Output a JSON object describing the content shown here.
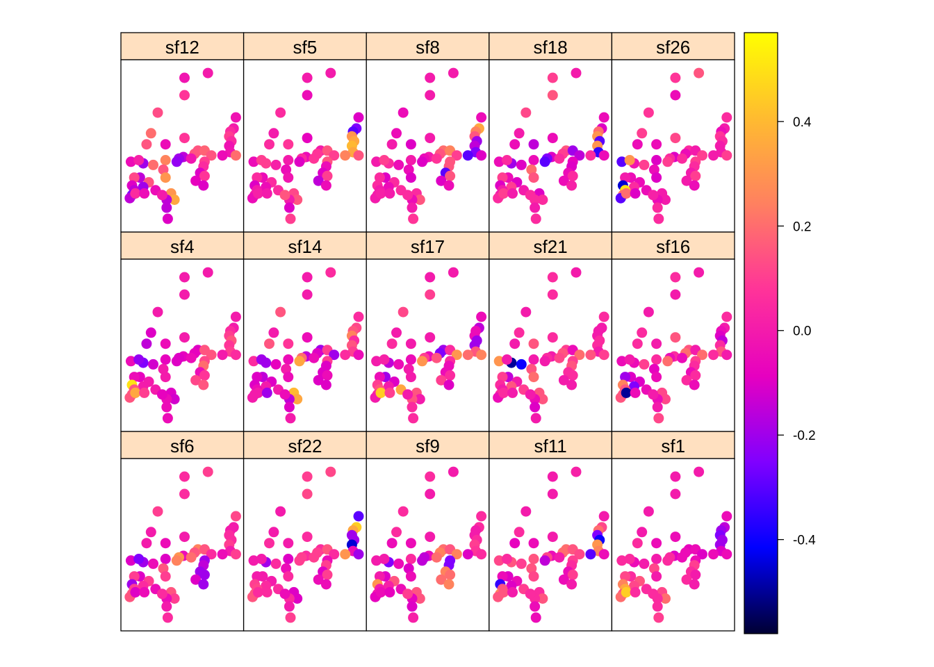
{
  "chart_data": {
    "type": "scatter",
    "layout": "3 rows x 5 columns of panels",
    "panels": [
      "sf12",
      "sf5",
      "sf8",
      "sf18",
      "sf26",
      "sf4",
      "sf14",
      "sf17",
      "sf21",
      "sf16",
      "sf6",
      "sf22",
      "sf9",
      "sf11",
      "sf1"
    ],
    "xlim": [
      0,
      1
    ],
    "ylim": [
      0,
      1
    ],
    "colorbar": {
      "range": [
        -0.58,
        0.57
      ],
      "ticks": [
        -0.4,
        -0.2,
        0.0,
        0.2,
        0.4
      ],
      "tick_labels": [
        "-0.4",
        "-0.2",
        "0.0",
        "0.2",
        "0.4"
      ],
      "colors": [
        "#000033",
        "#0000ff",
        "#8000ff",
        "#e600c0",
        "#ff3399",
        "#ff8060",
        "#ffbb30",
        "#ffff00"
      ]
    },
    "sites": [
      [
        0.52,
        0.93
      ],
      [
        0.73,
        0.96
      ],
      [
        0.52,
        0.82
      ],
      [
        0.28,
        0.71
      ],
      [
        0.98,
        0.68
      ],
      [
        0.96,
        0.61
      ],
      [
        0.93,
        0.59
      ],
      [
        0.92,
        0.56
      ],
      [
        0.22,
        0.58
      ],
      [
        0.94,
        0.53
      ],
      [
        0.35,
        0.51
      ],
      [
        0.92,
        0.5
      ],
      [
        0.52,
        0.55
      ],
      [
        0.18,
        0.51
      ],
      [
        0.64,
        0.47
      ],
      [
        0.7,
        0.47
      ],
      [
        0.93,
        0.46
      ],
      [
        0.61,
        0.45
      ],
      [
        0.76,
        0.44
      ],
      [
        0.98,
        0.44
      ],
      [
        0.51,
        0.43
      ],
      [
        0.47,
        0.42
      ],
      [
        0.86,
        0.44
      ],
      [
        0.45,
        0.4
      ],
      [
        0.35,
        0.41
      ],
      [
        0.58,
        0.42
      ],
      [
        0.7,
        0.4
      ],
      [
        0.04,
        0.4
      ],
      [
        0.15,
        0.39
      ],
      [
        0.24,
        0.38
      ],
      [
        0.11,
        0.41
      ],
      [
        0.69,
        0.37
      ],
      [
        0.66,
        0.33
      ],
      [
        0.33,
        0.35
      ],
      [
        0.35,
        0.3
      ],
      [
        0.7,
        0.31
      ],
      [
        0.12,
        0.3
      ],
      [
        0.07,
        0.3
      ],
      [
        0.2,
        0.27
      ],
      [
        0.62,
        0.28
      ],
      [
        0.05,
        0.25
      ],
      [
        0.15,
        0.24
      ],
      [
        0.07,
        0.22
      ],
      [
        0.26,
        0.22
      ],
      [
        0.05,
        0.19
      ],
      [
        0.03,
        0.17
      ],
      [
        0.08,
        0.2
      ],
      [
        0.69,
        0.25
      ],
      [
        0.4,
        0.2
      ],
      [
        0.43,
        0.16
      ],
      [
        0.36,
        0.16
      ],
      [
        0.16,
        0.2
      ],
      [
        0.32,
        0.19
      ],
      [
        0.36,
        0.11
      ],
      [
        0.37,
        0.04
      ]
    ],
    "values": [
      [
        -0.02,
        0.0,
        0.08,
        0.13,
        -0.03,
        0.0,
        0.05,
        0.1,
        0.2,
        0.05,
        -0.05,
        -0.03,
        0.08,
        0.15,
        0.15,
        0.18,
        -0.02,
        0.15,
        0.15,
        0.2,
        -0.15,
        -0.2,
        -0.05,
        -0.22,
        0.25,
        -0.02,
        0.1,
        -0.05,
        -0.2,
        0.2,
        0.02,
        0.05,
        -0.1,
        0.15,
        0.3,
        0.08,
        -0.15,
        0.12,
        0.15,
        -0.08,
        -0.1,
        -0.2,
        -0.15,
        -0.05,
        -0.25,
        -0.15,
        0.05,
        -0.1,
        0.3,
        0.35,
        -0.15,
        -0.05,
        0.0,
        -0.15,
        -0.1
      ],
      [
        0.0,
        0.0,
        -0.05,
        0.05,
        -0.1,
        -0.25,
        -0.3,
        0.3,
        0.0,
        0.35,
        0.08,
        0.4,
        -0.08,
        0.05,
        0.0,
        0.15,
        0.35,
        0.08,
        0.1,
        0.15,
        -0.05,
        0.05,
        0.25,
        -0.1,
        0.0,
        0.08,
        0.15,
        -0.05,
        0.1,
        0.02,
        0.1,
        -0.05,
        -0.1,
        -0.05,
        -0.02,
        0.1,
        -0.05,
        0.05,
        0.05,
        -0.15,
        -0.1,
        -0.05,
        0.0,
        0.05,
        0.0,
        -0.05,
        0.02,
        -0.05,
        0.12,
        0.15,
        0.0,
        0.0,
        0.15,
        -0.1,
        0.1
      ],
      [
        0.0,
        0.0,
        0.0,
        -0.05,
        -0.05,
        0.35,
        0.25,
        0.15,
        -0.05,
        -0.2,
        -0.1,
        -0.15,
        0.0,
        0.0,
        0.2,
        0.25,
        -0.25,
        0.15,
        0.1,
        -0.1,
        0.0,
        -0.05,
        -0.3,
        -0.1,
        0.0,
        0.08,
        0.15,
        0.0,
        0.05,
        -0.05,
        0.1,
        0.15,
        -0.3,
        -0.05,
        -0.1,
        0.15,
        -0.1,
        0.05,
        0.05,
        -0.1,
        0.05,
        -0.05,
        0.0,
        0.05,
        0.0,
        0.0,
        0.02,
        -0.05,
        0.05,
        0.15,
        -0.05,
        0.0,
        0.05,
        0.0,
        0.08
      ],
      [
        0.1,
        0.0,
        0.15,
        0.12,
        -0.05,
        -0.1,
        0.2,
        0.3,
        0.0,
        -0.3,
        -0.15,
        0.3,
        -0.05,
        -0.05,
        0.15,
        -0.2,
        -0.35,
        0.1,
        -0.15,
        -0.05,
        -0.1,
        -0.25,
        0.05,
        -0.3,
        -0.05,
        0.05,
        -0.08,
        -0.05,
        -0.2,
        -0.1,
        0.05,
        -0.1,
        -0.05,
        0.2,
        0.15,
        0.05,
        -0.05,
        0.1,
        -0.1,
        -0.05,
        -0.1,
        0.1,
        0.0,
        0.0,
        0.0,
        0.05,
        0.1,
        0.02,
        -0.1,
        0.05,
        0.05,
        0.0,
        0.05,
        0.0,
        0.05
      ],
      [
        0.08,
        0.15,
        -0.05,
        0.08,
        0.05,
        0.0,
        -0.05,
        0.08,
        0.1,
        0.05,
        -0.05,
        0.0,
        0.12,
        -0.05,
        0.05,
        0.0,
        0.0,
        -0.05,
        0.1,
        0.1,
        -0.1,
        0.05,
        0.0,
        0.1,
        -0.1,
        0.05,
        0.1,
        -0.3,
        -0.02,
        0.1,
        0.3,
        0.05,
        0.0,
        -0.05,
        -0.1,
        0.1,
        -0.05,
        0.0,
        -0.05,
        0.0,
        -0.45,
        0.05,
        0.5,
        -0.05,
        0.2,
        -0.3,
        0.2,
        -0.05,
        0.0,
        0.0,
        -0.05,
        -0.1,
        0.02,
        0.05,
        0.05
      ],
      [
        0.0,
        0.0,
        0.0,
        0.0,
        0.0,
        0.0,
        0.05,
        0.1,
        -0.1,
        0.15,
        -0.05,
        0.08,
        0.0,
        -0.15,
        -0.1,
        0.15,
        0.1,
        -0.08,
        0.15,
        0.05,
        -0.08,
        -0.1,
        0.0,
        -0.1,
        -0.08,
        -0.05,
        0.12,
        -0.05,
        -0.25,
        -0.12,
        -0.22,
        0.2,
        -0.05,
        0.0,
        0.0,
        0.08,
        -0.08,
        -0.05,
        0.0,
        0.12,
        0.5,
        0.0,
        0.15,
        0.0,
        0.15,
        0.15,
        0.35,
        0.15,
        -0.1,
        -0.12,
        -0.05,
        0.1,
        -0.08,
        -0.05,
        -0.05
      ],
      [
        0.0,
        0.05,
        0.0,
        0.15,
        0.05,
        0.12,
        0.15,
        0.25,
        0.0,
        0.05,
        0.08,
        0.15,
        -0.05,
        0.15,
        -0.2,
        0.1,
        0.1,
        -0.1,
        -0.2,
        -0.05,
        -0.15,
        0.2,
        0.05,
        0.35,
        -0.05,
        -0.05,
        0.1,
        0.05,
        -0.2,
        -0.08,
        -0.2,
        -0.1,
        -0.1,
        0.0,
        -0.05,
        -0.05,
        -0.15,
        -0.1,
        -0.1,
        -0.1,
        -0.1,
        0.0,
        -0.05,
        0.0,
        0.0,
        0.0,
        0.0,
        -0.1,
        0.4,
        0.35,
        -0.15,
        -0.2,
        -0.05,
        -0.1,
        0.0
      ],
      [
        0.0,
        0.0,
        0.1,
        0.12,
        -0.05,
        -0.15,
        -0.05,
        -0.05,
        0.0,
        -0.2,
        0.0,
        -0.2,
        0.0,
        0.05,
        -0.2,
        0.05,
        0.15,
        -0.25,
        0.3,
        0.25,
        -0.05,
        0.1,
        0.2,
        0.3,
        -0.05,
        0.15,
        0.05,
        0.0,
        -0.15,
        -0.05,
        0.02,
        -0.05,
        -0.05,
        0.0,
        0.0,
        0.05,
        -0.2,
        -0.05,
        -0.1,
        0.1,
        0.1,
        0.0,
        0.15,
        0.35,
        0.05,
        0.0,
        0.45,
        -0.1,
        0.15,
        0.0,
        0.15,
        0.1,
        0.0,
        0.05,
        0.05
      ],
      [
        0.05,
        0.0,
        0.05,
        0.0,
        0.05,
        0.0,
        0.0,
        0.0,
        0.05,
        0.05,
        0.15,
        0.05,
        0.05,
        0.0,
        0.1,
        -0.05,
        0.0,
        0.15,
        0.2,
        0.1,
        0.0,
        0.05,
        0.15,
        0.0,
        0.0,
        0.12,
        0.1,
        0.3,
        -0.5,
        -0.4,
        0.0,
        0.15,
        0.05,
        0.15,
        0.2,
        0.05,
        -0.15,
        0.1,
        0.0,
        0.0,
        0.05,
        0.15,
        0.0,
        0.1,
        0.05,
        -0.05,
        0.05,
        0.0,
        0.15,
        0.15,
        -0.05,
        0.0,
        0.0,
        -0.1,
        0.0
      ],
      [
        0.05,
        0.0,
        0.0,
        0.0,
        0.05,
        0.0,
        -0.05,
        -0.1,
        0.05,
        -0.15,
        0.0,
        0.05,
        0.15,
        0.05,
        0.15,
        0.0,
        0.15,
        0.2,
        0.2,
        0.0,
        0.05,
        -0.05,
        0.05,
        0.2,
        0.05,
        -0.05,
        0.1,
        -0.05,
        -0.05,
        0.1,
        0.0,
        0.05,
        -0.05,
        -0.08,
        -0.05,
        0.05,
        -0.1,
        -0.2,
        -0.1,
        0.05,
        0.25,
        -0.25,
        0.15,
        -0.05,
        0.15,
        0.15,
        -0.5,
        -0.05,
        0.12,
        0.12,
        -0.05,
        -0.05,
        0.0,
        0.0,
        0.12
      ],
      [
        0.05,
        0.1,
        0.05,
        0.1,
        0.12,
        0.0,
        0.0,
        0.05,
        0.0,
        0.05,
        -0.05,
        0.1,
        0.0,
        0.0,
        0.25,
        0.15,
        0.0,
        0.15,
        0.05,
        0.1,
        -0.05,
        0.3,
        -0.05,
        0.25,
        -0.1,
        0.2,
        -0.2,
        -0.1,
        -0.2,
        -0.05,
        -0.25,
        -0.15,
        -0.2,
        0.15,
        0.1,
        -0.2,
        -0.1,
        0.1,
        0.1,
        -0.1,
        -0.2,
        0.05,
        0.1,
        -0.05,
        0.15,
        0.15,
        -0.1,
        -0.2,
        0.15,
        0.1,
        -0.05,
        -0.05,
        0.05,
        0.0,
        0.05
      ],
      [
        0.1,
        0.12,
        0.12,
        0.0,
        -0.3,
        0.45,
        0.35,
        -0.2,
        0.0,
        -0.2,
        0.0,
        -0.45,
        0.05,
        0.05,
        0.05,
        0.15,
        -0.05,
        0.1,
        0.05,
        -0.2,
        0.05,
        0.1,
        0.3,
        0.1,
        -0.1,
        0.1,
        -0.05,
        0.0,
        -0.2,
        0.05,
        0.0,
        0.1,
        -0.1,
        -0.05,
        0.05,
        0.1,
        0.0,
        0.0,
        0.0,
        -0.05,
        0.1,
        0.05,
        0.12,
        0.05,
        0.15,
        0.15,
        0.05,
        -0.05,
        -0.1,
        -0.1,
        0.05,
        0.05,
        -0.05,
        0.0,
        0.1
      ],
      [
        0.05,
        0.0,
        0.0,
        0.05,
        0.05,
        0.05,
        0.0,
        0.0,
        0.05,
        0.05,
        -0.05,
        0.1,
        0.0,
        -0.05,
        0.2,
        0.15,
        0.08,
        0.25,
        0.25,
        0.05,
        -0.05,
        -0.15,
        -0.1,
        -0.15,
        0.05,
        0.2,
        -0.25,
        0.0,
        -0.25,
        -0.05,
        0.0,
        -0.25,
        0.25,
        -0.1,
        -0.05,
        0.2,
        -0.1,
        0.0,
        0.15,
        0.2,
        0.3,
        0.02,
        0.0,
        -0.05,
        0.0,
        -0.08,
        -0.05,
        0.25,
        0.15,
        0.15,
        -0.08,
        -0.08,
        0.1,
        -0.1,
        0.02
      ],
      [
        0.0,
        0.02,
        0.0,
        0.0,
        0.0,
        0.12,
        0.2,
        -0.25,
        0.05,
        -0.4,
        -0.05,
        0.3,
        0.0,
        -0.08,
        0.2,
        0.15,
        0.25,
        0.2,
        0.12,
        -0.05,
        -0.05,
        0.12,
        -0.3,
        -0.15,
        0.15,
        0.0,
        0.1,
        0.12,
        0.15,
        0.1,
        0.05,
        0.05,
        -0.05,
        0.15,
        0.12,
        0.1,
        -0.1,
        -0.05,
        -0.05,
        -0.05,
        -0.35,
        -0.1,
        0.15,
        0.1,
        0.25,
        0.15,
        0.15,
        0.0,
        0.05,
        0.15,
        0.05,
        0.0,
        0.05,
        -0.05,
        -0.05
      ],
      [
        0.0,
        0.0,
        0.0,
        0.0,
        -0.05,
        -0.15,
        -0.2,
        -0.25,
        0.0,
        -0.2,
        -0.05,
        -0.2,
        -0.05,
        0.05,
        -0.08,
        -0.05,
        -0.1,
        -0.05,
        -0.1,
        -0.05,
        -0.1,
        0.05,
        -0.05,
        0.05,
        0.0,
        -0.05,
        -0.05,
        0.05,
        -0.05,
        0.0,
        0.05,
        0.1,
        0.05,
        0.12,
        0.0,
        0.0,
        0.05,
        0.12,
        0.15,
        0.05,
        0.25,
        0.12,
        0.35,
        0.05,
        0.15,
        0.2,
        0.45,
        0.0,
        0.12,
        0.2,
        0.05,
        0.05,
        0.05,
        0.05,
        0.1
      ]
    ]
  }
}
